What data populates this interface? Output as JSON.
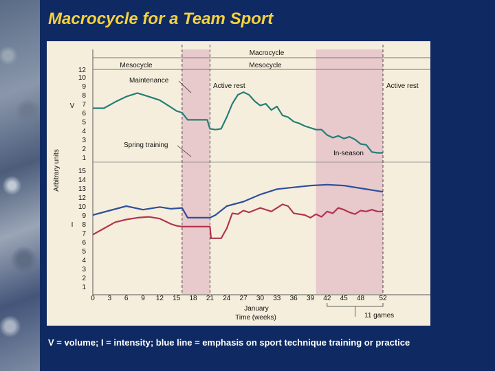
{
  "slide": {
    "title": "Macrocycle for a Team Sport",
    "caption": "V = volume; I = intensity; blue line = emphasis on sport technique training or practice"
  },
  "colors": {
    "background": "#0f2a63",
    "title": "#f7d23b",
    "panel": "#f6eedc",
    "shade": "#e8c9cc",
    "volume_line": "#237e78",
    "blue_line": "#2d4f9c",
    "intensity_line": "#b2344e"
  },
  "chart_data": {
    "type": "line",
    "xlabel": "Time (weeks)",
    "ylabel": "Arbitrary units",
    "x_ticks": [
      0,
      3,
      6,
      9,
      12,
      15,
      18,
      21,
      24,
      27,
      30,
      33,
      36,
      39,
      42,
      45,
      48,
      52
    ],
    "xlim": [
      0,
      52
    ],
    "v_ticks": [
      1,
      2,
      3,
      4,
      5,
      6,
      7,
      8,
      9,
      10,
      12
    ],
    "i_ticks": [
      1,
      2,
      3,
      4,
      5,
      6,
      7,
      8,
      9,
      10,
      12,
      13,
      14,
      15
    ],
    "panels": {
      "upper": "V",
      "lower": "I"
    },
    "shaded_regions": [
      [
        16,
        21
      ],
      [
        40,
        52
      ]
    ],
    "dashed_lines": [
      16,
      21,
      52
    ],
    "top_labels": {
      "macrocycle": "Macrocycle",
      "mesocycle_left": "Mesocycle",
      "mesocycle_right": "Mesocycle"
    },
    "annotations": {
      "maintenance": "Maintenance",
      "active_rest_1": "Active rest",
      "active_rest_2": "Active rest",
      "spring_training": "Spring training",
      "in_season": "In-season",
      "january": "January",
      "games": "11 games"
    },
    "series": [
      {
        "panel": "V",
        "color": "#237e78",
        "points": [
          [
            0,
            6.5
          ],
          [
            2,
            6.5
          ],
          [
            4,
            7.2
          ],
          [
            6,
            7.8
          ],
          [
            8,
            8.2
          ],
          [
            10,
            7.8
          ],
          [
            12,
            7.4
          ],
          [
            13.5,
            6.8
          ],
          [
            15,
            6.2
          ],
          [
            16,
            6
          ],
          [
            17,
            5.2
          ],
          [
            19,
            5.2
          ],
          [
            20.5,
            5.2
          ],
          [
            21,
            4.2
          ],
          [
            22,
            4.1
          ],
          [
            23,
            4.2
          ],
          [
            24,
            5.5
          ],
          [
            25,
            7
          ],
          [
            26,
            8
          ],
          [
            27,
            8.3
          ],
          [
            28,
            8
          ],
          [
            29,
            7.3
          ],
          [
            30,
            6.8
          ],
          [
            31,
            7
          ],
          [
            32,
            6.3
          ],
          [
            33,
            6.7
          ],
          [
            34,
            5.7
          ],
          [
            35,
            5.5
          ],
          [
            36,
            5
          ],
          [
            37,
            4.8
          ],
          [
            38,
            4.5
          ],
          [
            39,
            4.3
          ],
          [
            40,
            4.1
          ],
          [
            41,
            4.1
          ],
          [
            42,
            3.5
          ],
          [
            43,
            3.2
          ],
          [
            44,
            3.4
          ],
          [
            45,
            3.1
          ],
          [
            46,
            3.3
          ],
          [
            47,
            3
          ],
          [
            48,
            2.5
          ],
          [
            49,
            2.4
          ],
          [
            50,
            1.6
          ],
          [
            51,
            1.5
          ],
          [
            52,
            1.5
          ]
        ]
      },
      {
        "panel": "I",
        "color": "#2d4f9c",
        "points": [
          [
            0,
            9
          ],
          [
            3,
            9.5
          ],
          [
            6,
            10
          ],
          [
            9,
            10.6
          ],
          [
            12,
            10.9
          ],
          [
            14,
            10.7
          ],
          [
            16,
            9.8
          ],
          [
            17,
            8.7
          ],
          [
            20,
            8.7
          ],
          [
            21,
            8.7
          ],
          [
            22,
            9
          ],
          [
            24,
            10
          ],
          [
            27,
            11.5
          ],
          [
            30,
            12.3
          ],
          [
            33,
            12.9
          ],
          [
            36,
            13.1
          ],
          [
            39,
            13.3
          ],
          [
            42,
            13.4
          ],
          [
            45,
            13.3
          ],
          [
            48,
            13
          ],
          [
            52,
            12.6
          ]
        ]
      },
      {
        "panel": "I",
        "color": "#b2344e",
        "points": [
          [
            0,
            6.8
          ],
          [
            2,
            7.5
          ],
          [
            4,
            8.2
          ],
          [
            6,
            8.5
          ],
          [
            8,
            8.7
          ],
          [
            10,
            8.8
          ],
          [
            12,
            8.6
          ],
          [
            14,
            8
          ],
          [
            15,
            7.8
          ],
          [
            16,
            7.7
          ],
          [
            21,
            7.7
          ],
          [
            21.2,
            6.4
          ],
          [
            23,
            6.4
          ],
          [
            24,
            7.5
          ],
          [
            25,
            9.2
          ],
          [
            26,
            10.1
          ],
          [
            27,
            10.5
          ],
          [
            28,
            10.3
          ],
          [
            30,
            9.8
          ],
          [
            32,
            10.4
          ],
          [
            34,
            11.2
          ],
          [
            35,
            11
          ],
          [
            36,
            10.2
          ],
          [
            38,
            9
          ],
          [
            39,
            8.7
          ],
          [
            40,
            9.1
          ],
          [
            41,
            8.8
          ],
          [
            42,
            9.4
          ],
          [
            43,
            9.2
          ],
          [
            44,
            9.8
          ],
          [
            45,
            9.6
          ],
          [
            46,
            10.3
          ],
          [
            47,
            10.1
          ],
          [
            48,
            10.5
          ],
          [
            49,
            10.4
          ],
          [
            50,
            10.6
          ],
          [
            51,
            10.4
          ],
          [
            52,
            10.4
          ]
        ]
      }
    ]
  }
}
